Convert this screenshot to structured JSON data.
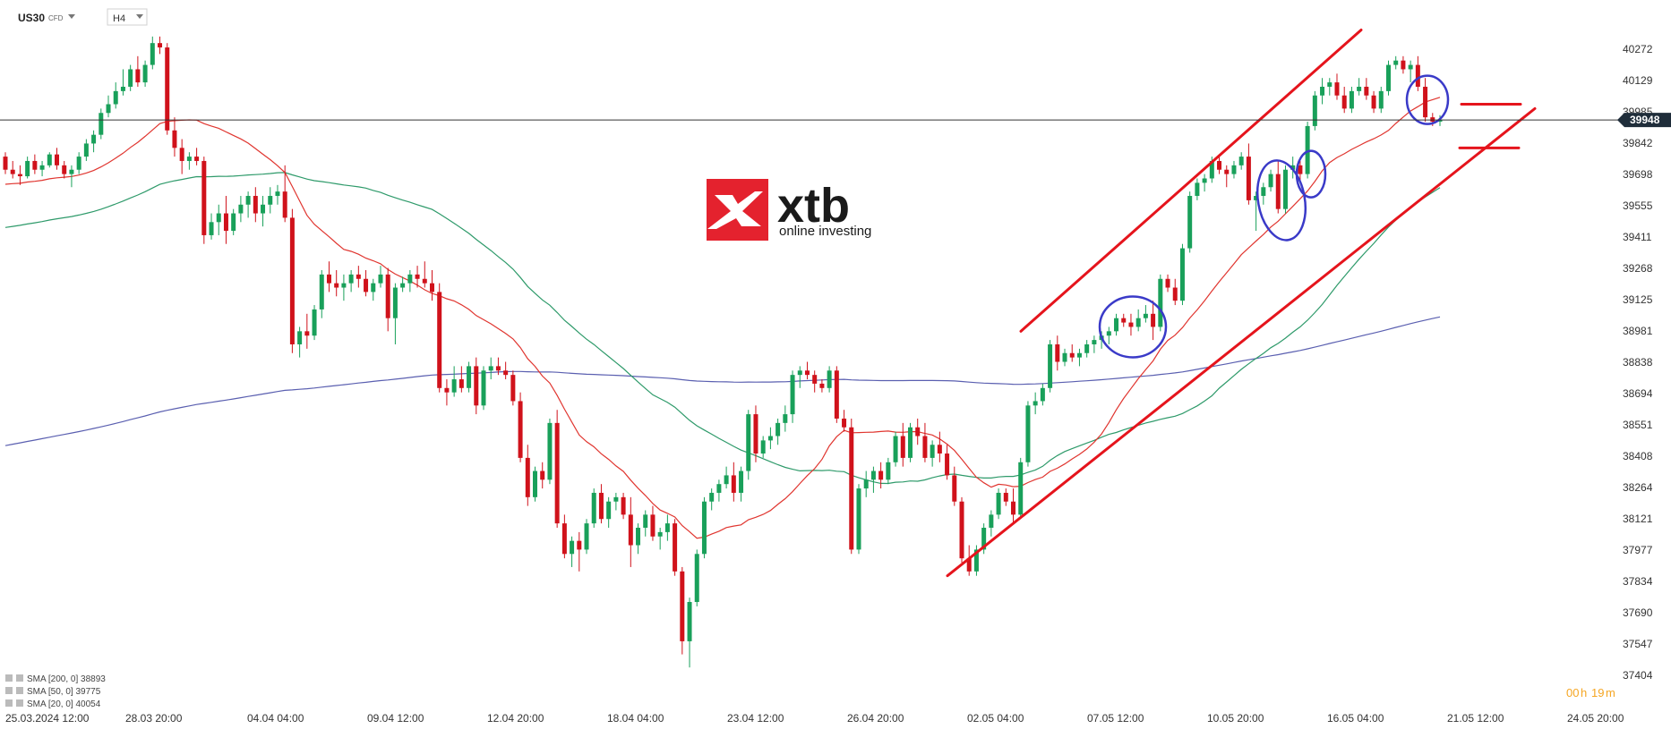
{
  "header": {
    "symbol": "US30",
    "symbol_tag": "CFD",
    "timeframe": "H4"
  },
  "logo": {
    "word": "xtb",
    "tagline": "online investing",
    "color": "#e4222e"
  },
  "current_price_label": "39948",
  "countdown": {
    "hours": "00",
    "h_unit": "h",
    "minutes": "19",
    "m_unit": "m",
    "color": "#f5a623"
  },
  "legend": [
    {
      "label": "SMA [200, 0] 38893",
      "color": "#5a5fb0"
    },
    {
      "label": "SMA [50, 0] 39775",
      "color": "#2e9a6a"
    },
    {
      "label": "SMA [20, 0] 40054",
      "color": "#e0352f"
    }
  ],
  "colors": {
    "up": "#19a05a",
    "down": "#d0121b",
    "annotation": "#e5141c",
    "circle": "#3a3ac8",
    "sma200": "#5a5fb0",
    "sma50": "#2e9a6a",
    "sma20": "#e0352f"
  },
  "chart_data": {
    "type": "candlestick",
    "symbol": "US30",
    "timeframe": "H4",
    "y_ticks": [
      "40272",
      "40129",
      "39985",
      "39842",
      "39698",
      "39555",
      "39411",
      "39268",
      "39125",
      "38981",
      "38838",
      "38694",
      "38551",
      "38408",
      "38264",
      "38121",
      "37977",
      "37834",
      "37690",
      "37547",
      "37404"
    ],
    "x_ticks": [
      "25.03.2024 12:00",
      "28.03 20:00",
      "04.04 04:00",
      "09.04 12:00",
      "12.04 20:00",
      "18.04 04:00",
      "23.04 12:00",
      "26.04 20:00",
      "02.05 04:00",
      "07.05 12:00",
      "10.05 20:00",
      "16.05 04:00",
      "21.05 12:00",
      "24.05 20:00"
    ],
    "ylim": [
      37404,
      40272
    ],
    "last_price": 39948,
    "candles": [
      [
        39780,
        39800,
        39700,
        39720
      ],
      [
        39720,
        39760,
        39680,
        39700
      ],
      [
        39700,
        39740,
        39650,
        39690
      ],
      [
        39690,
        39780,
        39680,
        39760
      ],
      [
        39760,
        39790,
        39700,
        39720
      ],
      [
        39720,
        39760,
        39690,
        39740
      ],
      [
        39740,
        39800,
        39730,
        39790
      ],
      [
        39790,
        39820,
        39720,
        39740
      ],
      [
        39740,
        39760,
        39680,
        39700
      ],
      [
        39700,
        39740,
        39640,
        39720
      ],
      [
        39720,
        39800,
        39700,
        39780
      ],
      [
        39780,
        39860,
        39760,
        39840
      ],
      [
        39840,
        39900,
        39800,
        39880
      ],
      [
        39880,
        40000,
        39860,
        39980
      ],
      [
        39980,
        40060,
        39960,
        40020
      ],
      [
        40020,
        40120,
        40000,
        40080
      ],
      [
        40080,
        40180,
        40060,
        40100
      ],
      [
        40100,
        40200,
        40080,
        40180
      ],
      [
        40180,
        40240,
        40100,
        40120
      ],
      [
        40120,
        40220,
        40100,
        40200
      ],
      [
        40200,
        40330,
        40180,
        40300
      ],
      [
        40300,
        40330,
        40250,
        40280
      ],
      [
        40280,
        40300,
        39880,
        39900
      ],
      [
        39900,
        39960,
        39780,
        39820
      ],
      [
        39820,
        39860,
        39700,
        39760
      ],
      [
        39760,
        39800,
        39720,
        39780
      ],
      [
        39780,
        39820,
        39740,
        39760
      ],
      [
        39760,
        39780,
        39380,
        39420
      ],
      [
        39420,
        39520,
        39400,
        39480
      ],
      [
        39480,
        39560,
        39420,
        39520
      ],
      [
        39520,
        39600,
        39380,
        39440
      ],
      [
        39440,
        39540,
        39420,
        39520
      ],
      [
        39520,
        39600,
        39480,
        39560
      ],
      [
        39560,
        39620,
        39500,
        39600
      ],
      [
        39600,
        39640,
        39480,
        39520
      ],
      [
        39520,
        39600,
        39460,
        39560
      ],
      [
        39560,
        39640,
        39520,
        39600
      ],
      [
        39600,
        39650,
        39560,
        39620
      ],
      [
        39620,
        39740,
        39480,
        39500
      ],
      [
        39500,
        39540,
        38880,
        38920
      ],
      [
        38920,
        39000,
        38860,
        38980
      ],
      [
        38980,
        39060,
        38900,
        38960
      ],
      [
        38960,
        39100,
        38940,
        39080
      ],
      [
        39080,
        39260,
        39040,
        39240
      ],
      [
        39240,
        39300,
        39160,
        39200
      ],
      [
        39200,
        39260,
        39140,
        39180
      ],
      [
        39180,
        39240,
        39120,
        39200
      ],
      [
        39200,
        39260,
        39160,
        39240
      ],
      [
        39240,
        39280,
        39180,
        39220
      ],
      [
        39220,
        39260,
        39140,
        39160
      ],
      [
        39160,
        39220,
        39120,
        39200
      ],
      [
        39200,
        39280,
        39180,
        39240
      ],
      [
        39240,
        39270,
        38980,
        39040
      ],
      [
        39040,
        39200,
        38920,
        39180
      ],
      [
        39180,
        39230,
        39160,
        39200
      ],
      [
        39200,
        39260,
        39160,
        39240
      ],
      [
        39240,
        39280,
        39180,
        39220
      ],
      [
        39220,
        39300,
        39180,
        39200
      ],
      [
        39200,
        39260,
        39120,
        39160
      ],
      [
        39160,
        39200,
        38700,
        38720
      ],
      [
        38720,
        38760,
        38640,
        38700
      ],
      [
        38700,
        38820,
        38680,
        38760
      ],
      [
        38760,
        38820,
        38700,
        38720
      ],
      [
        38720,
        38840,
        38700,
        38820
      ],
      [
        38820,
        38860,
        38600,
        38640
      ],
      [
        38640,
        38820,
        38620,
        38800
      ],
      [
        38800,
        38860,
        38760,
        38820
      ],
      [
        38820,
        38860,
        38780,
        38800
      ],
      [
        38800,
        38840,
        38760,
        38780
      ],
      [
        38780,
        38800,
        38640,
        38660
      ],
      [
        38660,
        38700,
        38380,
        38400
      ],
      [
        38400,
        38460,
        38180,
        38220
      ],
      [
        38220,
        38360,
        38200,
        38340
      ],
      [
        38340,
        38380,
        38260,
        38300
      ],
      [
        38300,
        38580,
        38280,
        38560
      ],
      [
        38560,
        38620,
        38080,
        38100
      ],
      [
        38100,
        38140,
        37940,
        37960
      ],
      [
        37960,
        38040,
        37900,
        38020
      ],
      [
        38020,
        38060,
        37880,
        37980
      ],
      [
        37980,
        38120,
        37960,
        38100
      ],
      [
        38100,
        38260,
        38080,
        38240
      ],
      [
        38240,
        38280,
        38100,
        38120
      ],
      [
        38120,
        38220,
        38080,
        38200
      ],
      [
        38200,
        38240,
        38160,
        38220
      ],
      [
        38220,
        38240,
        38120,
        38140
      ],
      [
        38140,
        38220,
        37900,
        38000
      ],
      [
        38000,
        38100,
        37960,
        38080
      ],
      [
        38080,
        38160,
        38040,
        38140
      ],
      [
        38140,
        38180,
        38020,
        38040
      ],
      [
        38040,
        38080,
        37980,
        38060
      ],
      [
        38060,
        38140,
        38020,
        38100
      ],
      [
        38100,
        38120,
        37860,
        37880
      ],
      [
        37880,
        37900,
        37500,
        37560
      ],
      [
        37560,
        37760,
        37440,
        37740
      ],
      [
        37740,
        37980,
        37720,
        37960
      ],
      [
        37960,
        38220,
        37940,
        38200
      ],
      [
        38200,
        38260,
        38160,
        38240
      ],
      [
        38240,
        38300,
        38200,
        38280
      ],
      [
        38280,
        38360,
        38260,
        38320
      ],
      [
        38320,
        38380,
        38200,
        38240
      ],
      [
        38240,
        38360,
        38200,
        38340
      ],
      [
        38340,
        38620,
        38300,
        38600
      ],
      [
        38600,
        38640,
        38380,
        38420
      ],
      [
        38420,
        38500,
        38400,
        38480
      ],
      [
        38480,
        38540,
        38440,
        38500
      ],
      [
        38500,
        38580,
        38460,
        38560
      ],
      [
        38560,
        38640,
        38520,
        38600
      ],
      [
        38600,
        38800,
        38560,
        38780
      ],
      [
        38780,
        38820,
        38720,
        38800
      ],
      [
        38800,
        38840,
        38760,
        38780
      ],
      [
        38780,
        38800,
        38700,
        38740
      ],
      [
        38740,
        38760,
        38700,
        38720
      ],
      [
        38720,
        38820,
        38700,
        38800
      ],
      [
        38800,
        38820,
        38560,
        38580
      ],
      [
        38580,
        38620,
        38520,
        38540
      ],
      [
        38540,
        38580,
        37960,
        37980
      ],
      [
        37980,
        38280,
        37960,
        38260
      ],
      [
        38260,
        38340,
        38220,
        38300
      ],
      [
        38300,
        38360,
        38240,
        38340
      ],
      [
        38340,
        38380,
        38260,
        38300
      ],
      [
        38300,
        38400,
        38280,
        38380
      ],
      [
        38380,
        38520,
        38360,
        38500
      ],
      [
        38500,
        38560,
        38360,
        38400
      ],
      [
        38400,
        38560,
        38380,
        38540
      ],
      [
        38540,
        38580,
        38460,
        38500
      ],
      [
        38500,
        38560,
        38380,
        38400
      ],
      [
        38400,
        38480,
        38360,
        38460
      ],
      [
        38460,
        38520,
        38380,
        38420
      ],
      [
        38420,
        38460,
        38300,
        38320
      ],
      [
        38320,
        38360,
        38180,
        38200
      ],
      [
        38200,
        38220,
        37920,
        37940
      ],
      [
        37940,
        38000,
        37860,
        37880
      ],
      [
        37880,
        38000,
        37860,
        37980
      ],
      [
        37980,
        38100,
        37960,
        38080
      ],
      [
        38080,
        38160,
        38040,
        38140
      ],
      [
        38140,
        38260,
        38120,
        38240
      ],
      [
        38240,
        38260,
        38180,
        38200
      ],
      [
        38200,
        38260,
        38100,
        38140
      ],
      [
        38140,
        38400,
        38120,
        38380
      ],
      [
        38380,
        38660,
        38360,
        38640
      ],
      [
        38640,
        38700,
        38600,
        38660
      ],
      [
        38660,
        38740,
        38640,
        38720
      ],
      [
        38720,
        38940,
        38700,
        38920
      ],
      [
        38920,
        38960,
        38800,
        38840
      ],
      [
        38840,
        38900,
        38820,
        38880
      ],
      [
        38880,
        38920,
        38840,
        38860
      ],
      [
        38860,
        38900,
        38820,
        38880
      ],
      [
        38880,
        38940,
        38860,
        38920
      ],
      [
        38920,
        38960,
        38880,
        38940
      ],
      [
        38940,
        38980,
        38900,
        38960
      ],
      [
        38960,
        39000,
        38920,
        38980
      ],
      [
        38980,
        39060,
        38960,
        39040
      ],
      [
        39040,
        39060,
        39000,
        39020
      ],
      [
        39020,
        39060,
        38960,
        39000
      ],
      [
        39000,
        39080,
        38980,
        39040
      ],
      [
        39040,
        39100,
        39020,
        39060
      ],
      [
        39060,
        39120,
        38940,
        39000
      ],
      [
        39000,
        39240,
        38980,
        39220
      ],
      [
        39220,
        39240,
        39160,
        39180
      ],
      [
        39180,
        39220,
        39100,
        39120
      ],
      [
        39120,
        39380,
        39100,
        39360
      ],
      [
        39360,
        39620,
        39340,
        39600
      ],
      [
        39600,
        39680,
        39580,
        39660
      ],
      [
        39660,
        39700,
        39620,
        39680
      ],
      [
        39680,
        39780,
        39660,
        39760
      ],
      [
        39760,
        39780,
        39700,
        39720
      ],
      [
        39720,
        39740,
        39640,
        39700
      ],
      [
        39700,
        39760,
        39680,
        39740
      ],
      [
        39740,
        39800,
        39720,
        39780
      ],
      [
        39780,
        39840,
        39560,
        39580
      ],
      [
        39580,
        39620,
        39440,
        39600
      ],
      [
        39600,
        39660,
        39560,
        39640
      ],
      [
        39640,
        39720,
        39620,
        39700
      ],
      [
        39700,
        39760,
        39520,
        39540
      ],
      [
        39540,
        39740,
        39520,
        39720
      ],
      [
        39720,
        39780,
        39680,
        39740
      ],
      [
        39740,
        39760,
        39660,
        39700
      ],
      [
        39700,
        39940,
        39680,
        39920
      ],
      [
        39920,
        40080,
        39900,
        40060
      ],
      [
        40060,
        40140,
        40020,
        40100
      ],
      [
        40100,
        40140,
        40060,
        40120
      ],
      [
        40120,
        40160,
        40040,
        40060
      ],
      [
        40060,
        40100,
        39980,
        40000
      ],
      [
        40000,
        40100,
        39980,
        40080
      ],
      [
        40080,
        40140,
        40060,
        40100
      ],
      [
        40100,
        40140,
        40040,
        40060
      ],
      [
        40060,
        40080,
        39980,
        40000
      ],
      [
        40000,
        40100,
        39980,
        40080
      ],
      [
        40080,
        40220,
        40060,
        40200
      ],
      [
        40200,
        40240,
        40180,
        40220
      ],
      [
        40220,
        40240,
        40160,
        40180
      ],
      [
        40180,
        40220,
        40120,
        40200
      ],
      [
        40200,
        40240,
        40080,
        40100
      ],
      [
        40100,
        40140,
        39940,
        39960
      ],
      [
        39960,
        39980,
        39920,
        39940
      ],
      [
        39940,
        39970,
        39920,
        39948
      ]
    ]
  }
}
